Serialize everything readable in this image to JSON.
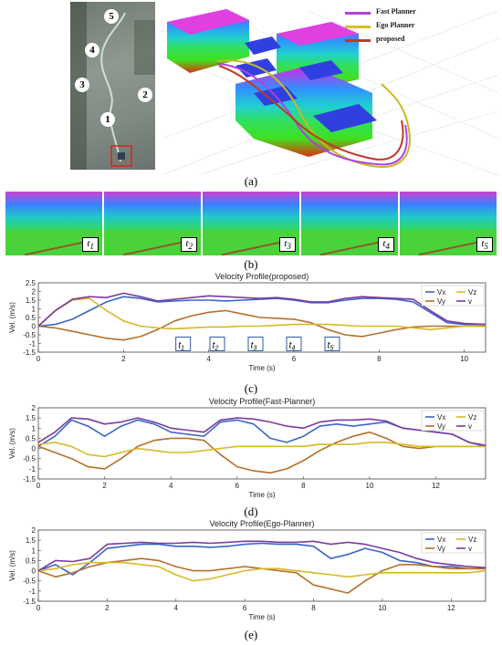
{
  "panel_labels": {
    "a": "(a)",
    "b": "(b)",
    "c": "(c)",
    "d": "(d)",
    "e": "(e)"
  },
  "panel_a": {
    "legend": [
      {
        "name": "Fast Planner",
        "color": "#b040e0"
      },
      {
        "name": "Ego Planner",
        "color": "#d8c020"
      },
      {
        "name": "proposed",
        "color": "#c03828"
      }
    ],
    "waypoints": [
      "1",
      "2",
      "3",
      "4",
      "5"
    ]
  },
  "panel_b": {
    "time_markers": [
      "t1",
      "t2",
      "t3",
      "t4",
      "t5"
    ]
  },
  "colors": {
    "vx": "#3a66c8",
    "vy": "#b5702a",
    "vz": "#d8b82a",
    "v": "#7b3aa0"
  },
  "chart_data": [
    {
      "type": "line",
      "title": "Velocity Profile(proposed)",
      "xlabel": "Time (s)",
      "ylabel": "Vel. (m/s)",
      "xlim": [
        0,
        10.5
      ],
      "ylim": [
        -1.5,
        2.5
      ],
      "xticks": [
        "0",
        "2",
        "4",
        "6",
        "8",
        "10"
      ],
      "yticks": [
        "-1.5",
        "-1",
        "-0.5",
        "0",
        "0.5",
        "1",
        "1.5",
        "2",
        "2.5"
      ],
      "legend": [
        "Vx",
        "Vz",
        "Vy",
        "v"
      ],
      "legend_position": "top-right",
      "time_markers": [
        "t1",
        "t2",
        "t3",
        "t4",
        "t5"
      ],
      "time_marker_x": [
        3.4,
        4.2,
        5.1,
        6.0,
        6.9
      ],
      "series": [
        {
          "name": "Vx",
          "x": [
            0,
            0.4,
            0.8,
            1.2,
            1.6,
            2.0,
            2.4,
            2.8,
            3.2,
            3.6,
            4.0,
            4.4,
            4.8,
            5.2,
            5.6,
            6.0,
            6.4,
            6.8,
            7.2,
            7.6,
            8.0,
            8.4,
            8.8,
            9.2,
            9.6,
            10.0,
            10.5
          ],
          "y": [
            0,
            0.1,
            0.4,
            0.9,
            1.4,
            1.7,
            1.6,
            1.4,
            1.45,
            1.5,
            1.5,
            1.45,
            1.5,
            1.55,
            1.6,
            1.5,
            1.35,
            1.35,
            1.5,
            1.6,
            1.6,
            1.55,
            1.4,
            0.8,
            0.2,
            0.1,
            0.1
          ]
        },
        {
          "name": "Vy",
          "x": [
            0,
            0.4,
            0.8,
            1.2,
            1.6,
            2.0,
            2.4,
            2.8,
            3.2,
            3.6,
            4.0,
            4.4,
            4.8,
            5.2,
            5.6,
            6.0,
            6.4,
            6.8,
            7.2,
            7.6,
            8.0,
            8.4,
            8.8,
            9.2,
            9.6,
            10.0,
            10.5
          ],
          "y": [
            0,
            -0.1,
            -0.3,
            -0.5,
            -0.7,
            -0.8,
            -0.6,
            -0.2,
            0.3,
            0.6,
            0.8,
            0.9,
            0.7,
            0.5,
            0.45,
            0.4,
            0.2,
            -0.2,
            -0.5,
            -0.6,
            -0.4,
            -0.2,
            -0.05,
            0,
            0,
            0,
            0
          ]
        },
        {
          "name": "Vz",
          "x": [
            0,
            0.4,
            0.8,
            1.2,
            1.6,
            2.0,
            2.4,
            2.8,
            3.2,
            3.6,
            4.0,
            4.4,
            4.8,
            5.2,
            5.6,
            6.0,
            6.4,
            6.8,
            7.2,
            7.6,
            8.0,
            8.4,
            8.8,
            9.2,
            9.6,
            10.0,
            10.5
          ],
          "y": [
            0,
            0.9,
            1.5,
            1.6,
            0.9,
            0.3,
            0,
            -0.1,
            -0.15,
            -0.1,
            -0.05,
            -0.05,
            0,
            0,
            0.05,
            0.1,
            0.1,
            0.1,
            0.05,
            0,
            0,
            0,
            -0.1,
            -0.2,
            -0.1,
            0,
            0.05
          ]
        },
        {
          "name": "v",
          "x": [
            0,
            0.4,
            0.8,
            1.2,
            1.6,
            2.0,
            2.4,
            2.8,
            3.2,
            3.6,
            4.0,
            4.4,
            4.8,
            5.2,
            5.6,
            6.0,
            6.4,
            6.8,
            7.2,
            7.6,
            8.0,
            8.4,
            8.8,
            9.2,
            9.6,
            10.0,
            10.5
          ],
          "y": [
            0,
            0.9,
            1.55,
            1.7,
            1.65,
            1.9,
            1.7,
            1.45,
            1.55,
            1.65,
            1.75,
            1.7,
            1.65,
            1.6,
            1.65,
            1.55,
            1.4,
            1.4,
            1.6,
            1.7,
            1.65,
            1.6,
            1.55,
            0.9,
            0.3,
            0.15,
            0.1
          ]
        }
      ]
    },
    {
      "type": "line",
      "title": "Velocity Profile(Fast-Planner)",
      "xlabel": "Time (s)",
      "ylabel": "Vel. (m/s)",
      "xlim": [
        0,
        13.5
      ],
      "ylim": [
        -1.5,
        2
      ],
      "xticks": [
        "0",
        "2",
        "4",
        "6",
        "8",
        "10",
        "12"
      ],
      "yticks": [
        "-1.5",
        "-1",
        "-0.5",
        "0",
        "0.5",
        "1",
        "1.5",
        "2"
      ],
      "legend": [
        "Vx",
        "Vz",
        "Vy",
        "v"
      ],
      "legend_position": "top-right",
      "series": [
        {
          "name": "Vx",
          "x": [
            0,
            0.5,
            1.0,
            1.5,
            2.0,
            2.5,
            3.0,
            3.5,
            4.0,
            4.5,
            5.0,
            5.5,
            6.0,
            6.5,
            7.0,
            7.5,
            8.0,
            8.5,
            9.0,
            9.5,
            10.0,
            10.5,
            11.0,
            11.5,
            12.0,
            12.5,
            13.0,
            13.5
          ],
          "y": [
            0.1,
            0.6,
            1.4,
            1.1,
            0.6,
            1.1,
            1.4,
            1.2,
            0.8,
            0.7,
            0.6,
            1.3,
            1.4,
            1.2,
            0.5,
            0.3,
            0.6,
            1.1,
            1.2,
            1.1,
            1.2,
            1.3,
            1.0,
            0.9,
            0.8,
            0.7,
            0.3,
            0.1
          ]
        },
        {
          "name": "Vy",
          "x": [
            0,
            0.5,
            1.0,
            1.5,
            2.0,
            2.5,
            3.0,
            3.5,
            4.0,
            4.5,
            5.0,
            5.5,
            6.0,
            6.5,
            7.0,
            7.5,
            8.0,
            8.5,
            9.0,
            9.5,
            10.0,
            10.5,
            11.0,
            11.5,
            12.0,
            12.5,
            13.0,
            13.5
          ],
          "y": [
            0.1,
            -0.2,
            -0.5,
            -0.9,
            -1.0,
            -0.5,
            0.1,
            0.4,
            0.5,
            0.5,
            0.4,
            -0.3,
            -0.9,
            -1.1,
            -1.2,
            -1.0,
            -0.6,
            -0.1,
            0.3,
            0.6,
            0.8,
            0.5,
            0.1,
            0,
            0.1,
            0.1,
            0.1,
            0.1
          ]
        },
        {
          "name": "Vz",
          "x": [
            0,
            0.5,
            1.0,
            1.5,
            2.0,
            2.5,
            3.0,
            3.5,
            4.0,
            4.5,
            5.0,
            5.5,
            6.0,
            6.5,
            7.0,
            7.5,
            8.0,
            8.5,
            9.0,
            9.5,
            10.0,
            10.5,
            11.0,
            11.5,
            12.0,
            12.5,
            13.0,
            13.5
          ],
          "y": [
            0.2,
            0.3,
            0.1,
            -0.3,
            -0.4,
            -0.2,
            0,
            -0.1,
            -0.2,
            -0.2,
            -0.1,
            0,
            0.1,
            0.1,
            0.1,
            0.1,
            0.1,
            0.2,
            0.2,
            0.2,
            0.3,
            0.3,
            0.2,
            0.1,
            0.1,
            0.1,
            0.1,
            0.1
          ]
        },
        {
          "name": "v",
          "x": [
            0,
            0.5,
            1.0,
            1.5,
            2.0,
            2.5,
            3.0,
            3.5,
            4.0,
            4.5,
            5.0,
            5.5,
            6.0,
            6.5,
            7.0,
            7.5,
            8.0,
            8.5,
            9.0,
            9.5,
            10.0,
            10.5,
            11.0,
            11.5,
            12.0,
            12.5,
            13.0,
            13.5
          ],
          "y": [
            0.3,
            0.8,
            1.5,
            1.45,
            1.2,
            1.3,
            1.5,
            1.3,
            1.0,
            0.9,
            0.8,
            1.4,
            1.5,
            1.45,
            1.3,
            1.1,
            1.0,
            1.3,
            1.4,
            1.4,
            1.45,
            1.35,
            1.0,
            0.9,
            0.8,
            0.7,
            0.3,
            0.15
          ]
        }
      ]
    },
    {
      "type": "line",
      "title": "Velocity Profile(Ego-Planner)",
      "xlabel": "Time (s)",
      "ylabel": "Vel. (m/s)",
      "xlim": [
        0,
        13
      ],
      "ylim": [
        -1.5,
        2
      ],
      "xticks": [
        "0",
        "2",
        "4",
        "6",
        "8",
        "10",
        "12"
      ],
      "yticks": [
        "-1.5",
        "-1",
        "-0.5",
        "0",
        "0.5",
        "1",
        "1.5",
        "2"
      ],
      "legend": [
        "Vx",
        "Vz",
        "Vy",
        "v"
      ],
      "legend_position": "top-right",
      "series": [
        {
          "name": "Vx",
          "x": [
            0,
            0.5,
            1.0,
            1.5,
            2.0,
            2.5,
            3.0,
            3.5,
            4.0,
            4.5,
            5.0,
            5.5,
            6.0,
            6.5,
            7.0,
            7.5,
            8.0,
            8.5,
            9.0,
            9.5,
            10.0,
            10.5,
            11.0,
            11.5,
            12.0,
            12.5,
            13.0
          ],
          "y": [
            0,
            0.3,
            -0.2,
            0.4,
            1.1,
            1.2,
            1.3,
            1.3,
            1.2,
            1.2,
            1.15,
            1.2,
            1.3,
            1.35,
            1.3,
            1.3,
            1.2,
            0.6,
            0.8,
            1.1,
            0.9,
            0.5,
            0.4,
            0.2,
            0.2,
            0.1,
            0.1
          ]
        },
        {
          "name": "Vy",
          "x": [
            0,
            0.5,
            1.0,
            1.5,
            2.0,
            2.5,
            3.0,
            3.5,
            4.0,
            4.5,
            5.0,
            5.5,
            6.0,
            6.5,
            7.0,
            7.5,
            8.0,
            8.5,
            9.0,
            9.5,
            10.0,
            10.5,
            11.0,
            11.5,
            12.0,
            12.5,
            13.0
          ],
          "y": [
            0,
            -0.3,
            -0.1,
            0.2,
            0.4,
            0.5,
            0.6,
            0.5,
            0.2,
            0,
            0,
            0.1,
            0.2,
            0.1,
            0,
            -0.1,
            -0.7,
            -0.9,
            -1.1,
            -0.5,
            0,
            0.3,
            0.3,
            0.2,
            0.1,
            0.1,
            0.1
          ]
        },
        {
          "name": "Vz",
          "x": [
            0,
            0.5,
            1.0,
            1.5,
            2.0,
            2.5,
            3.0,
            3.5,
            4.0,
            4.5,
            5.0,
            5.5,
            6.0,
            6.5,
            7.0,
            7.5,
            8.0,
            8.5,
            9.0,
            9.5,
            10.0,
            10.5,
            11.0,
            11.5,
            12.0,
            12.5,
            13.0
          ],
          "y": [
            0,
            0.1,
            0.3,
            0.4,
            0.4,
            0.4,
            0.3,
            0.2,
            -0.2,
            -0.5,
            -0.4,
            -0.2,
            0,
            0.1,
            0.1,
            0,
            -0.1,
            -0.2,
            -0.3,
            -0.2,
            -0.1,
            -0.1,
            -0.1,
            -0.1,
            -0.1,
            -0.1,
            0
          ]
        },
        {
          "name": "v",
          "x": [
            0,
            0.5,
            1.0,
            1.5,
            2.0,
            2.5,
            3.0,
            3.5,
            4.0,
            4.5,
            5.0,
            5.5,
            6.0,
            6.5,
            7.0,
            7.5,
            8.0,
            8.5,
            9.0,
            9.5,
            10.0,
            10.5,
            11.0,
            11.5,
            12.0,
            12.5,
            13.0
          ],
          "y": [
            0,
            0.5,
            0.45,
            0.6,
            1.3,
            1.35,
            1.4,
            1.35,
            1.35,
            1.4,
            1.35,
            1.4,
            1.45,
            1.45,
            1.4,
            1.4,
            1.45,
            1.3,
            1.4,
            1.3,
            1.1,
            0.9,
            0.6,
            0.4,
            0.3,
            0.2,
            0.15
          ]
        }
      ]
    }
  ]
}
